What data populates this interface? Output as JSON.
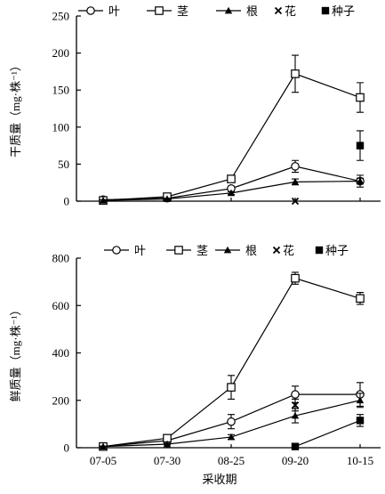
{
  "chart_data": [
    {
      "type": "line",
      "xlabel": "",
      "ylabel": "干质量（mg·株⁻¹）",
      "ylim": [
        0,
        250
      ],
      "yticks": [
        0,
        50,
        100,
        150,
        200,
        250
      ],
      "x": [
        "07-05",
        "07-30",
        "08-25",
        "09-20",
        "10-15"
      ],
      "grid": false,
      "legend": "top",
      "series": [
        {
          "name": "叶",
          "marker": "circle",
          "values": [
            2,
            4,
            17,
            47,
            27
          ],
          "errors": [
            1,
            2,
            3,
            8,
            8
          ]
        },
        {
          "name": "茎",
          "marker": "square",
          "values": [
            1,
            6,
            30,
            172,
            140
          ],
          "errors": [
            1,
            2,
            3,
            25,
            20
          ]
        },
        {
          "name": "根",
          "marker": "triangle",
          "values": [
            1,
            3,
            11,
            26,
            27
          ],
          "errors": [
            1,
            1,
            2,
            4,
            4
          ]
        },
        {
          "name": "花",
          "marker": "x",
          "values": [
            null,
            null,
            null,
            0,
            null
          ],
          "errors": [
            null,
            null,
            null,
            0,
            null
          ]
        },
        {
          "name": "种子",
          "marker": "filled-square",
          "values": [
            null,
            null,
            null,
            null,
            75
          ],
          "errors": [
            null,
            null,
            null,
            null,
            20
          ]
        }
      ]
    },
    {
      "type": "line",
      "xlabel": "采收期",
      "ylabel": "鲜质量（mg·株⁻¹）",
      "ylim": [
        0,
        800
      ],
      "yticks": [
        0,
        200,
        400,
        600,
        800
      ],
      "x": [
        "07-05",
        "07-30",
        "08-25",
        "09-20",
        "10-15"
      ],
      "grid": false,
      "legend": "top",
      "series": [
        {
          "name": "叶",
          "marker": "circle",
          "values": [
            5,
            30,
            110,
            225,
            225
          ],
          "errors": [
            3,
            5,
            30,
            35,
            50
          ]
        },
        {
          "name": "茎",
          "marker": "square",
          "values": [
            5,
            40,
            255,
            715,
            630
          ],
          "errors": [
            3,
            8,
            50,
            25,
            25
          ]
        },
        {
          "name": "根",
          "marker": "triangle",
          "values": [
            5,
            15,
            45,
            135,
            200
          ],
          "errors": [
            2,
            3,
            10,
            30,
            30
          ]
        },
        {
          "name": "花",
          "marker": "x",
          "values": [
            null,
            null,
            null,
            180,
            null
          ],
          "errors": [
            null,
            null,
            null,
            25,
            null
          ]
        },
        {
          "name": "种子",
          "marker": "filled-square",
          "values": [
            null,
            null,
            null,
            5,
            115
          ],
          "errors": [
            null,
            null,
            null,
            3,
            25
          ]
        }
      ]
    }
  ]
}
